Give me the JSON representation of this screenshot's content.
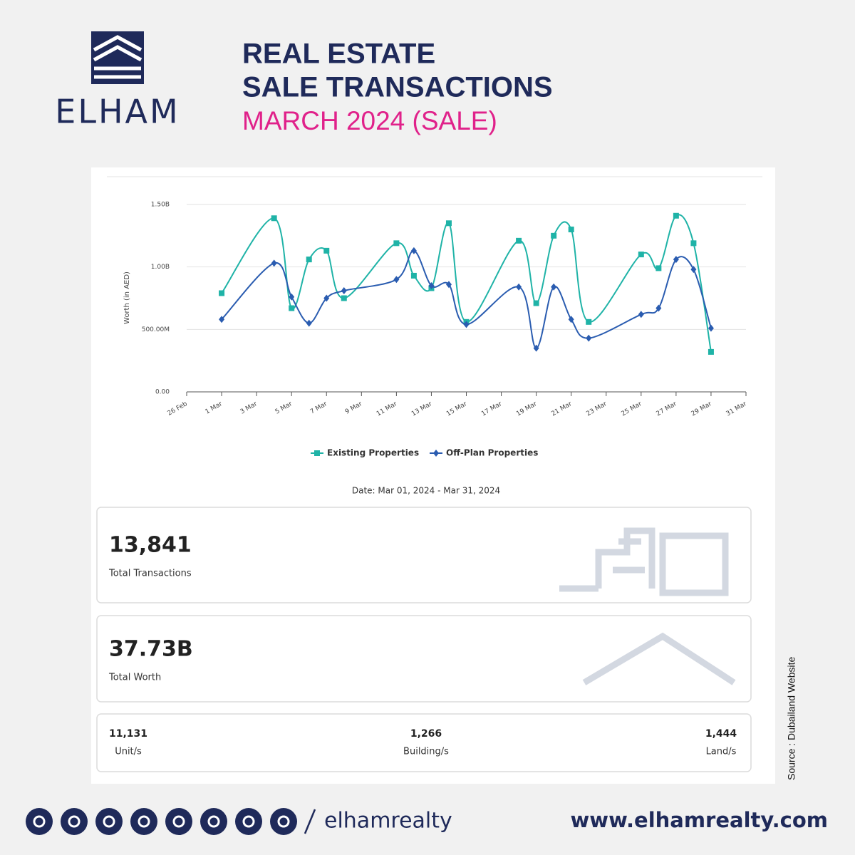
{
  "header": {
    "logo": "ELHAM",
    "title_lines": [
      "REAL ESTATE",
      "SALE TRANSACTIONS"
    ],
    "subtitle": "MARCH 2024 (SALE)"
  },
  "chart_data": {
    "type": "line",
    "y_label": "Worth (in AED)",
    "x": [
      "1 Mar",
      "4 Mar",
      "5 Mar",
      "6 Mar",
      "7 Mar",
      "8 Mar",
      "11 Mar",
      "12 Mar",
      "13 Mar",
      "14 Mar",
      "15 Mar",
      "18 Mar",
      "19 Mar",
      "20 Mar",
      "21 Mar",
      "22 Mar",
      "25 Mar",
      "26 Mar",
      "27 Mar",
      "28 Mar",
      "29 Mar"
    ],
    "xlim": [
      "26 Feb",
      "31 Mar"
    ],
    "xticks": [
      "26 Feb",
      "1 Mar",
      "3 Mar",
      "5 Mar",
      "7 Mar",
      "9 Mar",
      "11 Mar",
      "13 Mar",
      "15 Mar",
      "17 Mar",
      "19 Mar",
      "21 Mar",
      "23 Mar",
      "25 Mar",
      "27 Mar",
      "29 Mar",
      "31 Mar"
    ],
    "ylim": [
      0,
      1.5
    ],
    "yticks": [
      {
        "value": 0,
        "label": "0.00"
      },
      {
        "value": 0.5,
        "label": "500.00M"
      },
      {
        "value": 1.0,
        "label": "1.00B"
      },
      {
        "value": 1.5,
        "label": "1.50B"
      }
    ],
    "grid": true,
    "legend": "bottom",
    "series": [
      {
        "name": "Existing Properties",
        "color": "#1fb3a7",
        "marker": "square",
        "values": [
          0.79,
          1.39,
          0.67,
          1.06,
          1.13,
          0.75,
          1.19,
          0.93,
          0.83,
          1.35,
          0.56,
          1.21,
          0.71,
          1.25,
          1.3,
          0.56,
          1.1,
          0.99,
          1.41,
          1.19,
          0.32
        ]
      },
      {
        "name": "Off-Plan Properties",
        "color": "#2a5cb0",
        "marker": "diamond",
        "values": [
          0.58,
          1.03,
          0.76,
          0.55,
          0.75,
          0.81,
          0.9,
          1.13,
          0.85,
          0.86,
          0.54,
          0.84,
          0.35,
          0.84,
          0.58,
          0.43,
          0.62,
          0.67,
          1.06,
          0.98,
          0.51
        ]
      }
    ],
    "caption": "Date: Mar 01, 2024 - Mar 31, 2024"
  },
  "stats": {
    "transactions": {
      "value": "13,841",
      "label": "Total Transactions"
    },
    "worth": {
      "value": "37.73B",
      "label": "Total Worth"
    },
    "breakdown": [
      {
        "value": "11,131",
        "label": "Unit/s"
      },
      {
        "value": "1,266",
        "label": "Building/s"
      },
      {
        "value": "1,444",
        "label": "Land/s"
      }
    ]
  },
  "source": "Source : Dubailand Website",
  "footer": {
    "handle": "elhamrealty",
    "website": "www.elhamrealty.com"
  }
}
